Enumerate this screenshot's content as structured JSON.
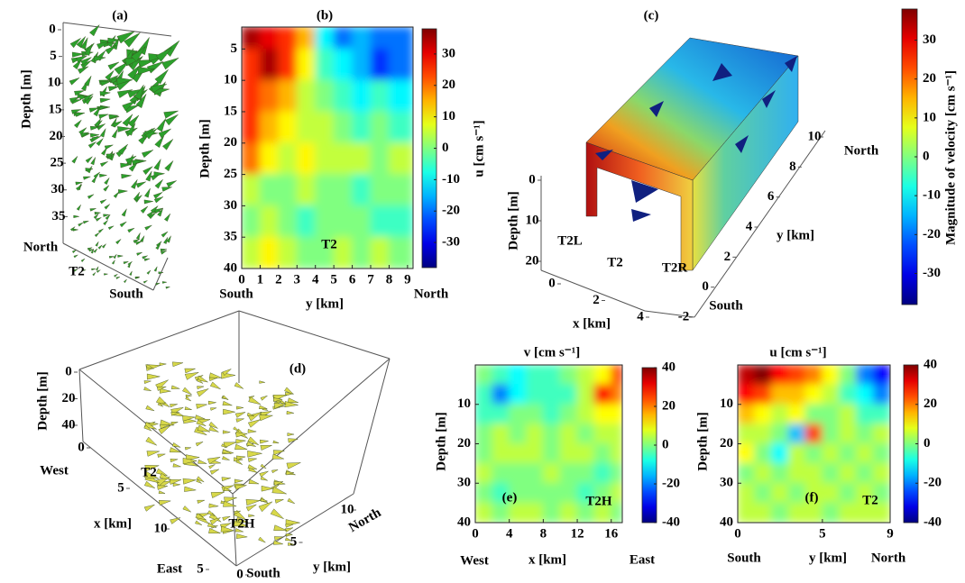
{
  "chart_data": [
    {
      "type": "quiver3d",
      "label": "(a)",
      "color": "#2ca02c",
      "zlabel": "Depth [m]",
      "zlim": [
        0,
        40
      ],
      "zticks": [
        0,
        5,
        10,
        15,
        20,
        25,
        30,
        35
      ],
      "annotations": [
        {
          "text": "North",
          "color": "#1a9a50"
        },
        {
          "text": "T2",
          "color": "#6ab84a"
        },
        {
          "text": "South",
          "color": "#e41a1c"
        }
      ]
    },
    {
      "type": "heatmap",
      "label": "(b)",
      "xlabel": "y [km]",
      "ylabel": "Depth [m]",
      "clabel": "u [cm s⁻¹]",
      "xlim": [
        0,
        9.3
      ],
      "ylim": [
        1.5,
        40
      ],
      "xticks": [
        0,
        1,
        2,
        3,
        4,
        5,
        6,
        7,
        8,
        9
      ],
      "yticks": [
        5,
        10,
        15,
        20,
        25,
        30,
        35,
        40
      ],
      "clim": [
        -38,
        38
      ],
      "cticks": [
        -30,
        -20,
        -10,
        0,
        10,
        20,
        30
      ],
      "x_edges": [
        0,
        1,
        2,
        3,
        4,
        5,
        6,
        7,
        8,
        9.3
      ],
      "y_edges": [
        1.5,
        5,
        10,
        15,
        20,
        25,
        30,
        35,
        40
      ],
      "z": [
        [
          35,
          30,
          25,
          15,
          -10,
          -20,
          -15,
          -20,
          -20
        ],
        [
          25,
          35,
          25,
          10,
          -5,
          -10,
          -15,
          -25,
          -20
        ],
        [
          25,
          20,
          15,
          5,
          0,
          -5,
          -10,
          -5,
          -10
        ],
        [
          25,
          15,
          10,
          5,
          5,
          0,
          -5,
          0,
          -5
        ],
        [
          20,
          10,
          5,
          10,
          5,
          5,
          5,
          0,
          5
        ],
        [
          5,
          0,
          0,
          5,
          0,
          0,
          -5,
          0,
          0
        ],
        [
          0,
          5,
          0,
          -5,
          0,
          0,
          0,
          -5,
          -5
        ],
        [
          5,
          10,
          5,
          0,
          0,
          5,
          0,
          5,
          0
        ]
      ],
      "annotations": [
        {
          "text": "T2",
          "color": "#7a9a50"
        },
        {
          "text": "South",
          "color": "#e41a1c"
        },
        {
          "text": "North",
          "color": "#1a9a50"
        }
      ]
    },
    {
      "type": "surface3d",
      "label": "(c)",
      "clabel": "Magnitude of velocity [cm s⁻¹]",
      "clim": [
        -38,
        38
      ],
      "cticks": [
        -30,
        -20,
        -10,
        0,
        10,
        20,
        30
      ],
      "zlabel": "Depth [m]",
      "zlim": [
        0,
        20
      ],
      "zticks": [
        0,
        10,
        20
      ],
      "xlabel": "x [km]",
      "xlim": [
        0,
        4
      ],
      "xticks": [
        0,
        2,
        4
      ],
      "ylabel": "y [km]",
      "ylim": [
        -2,
        10
      ],
      "yticks": [
        -2,
        0,
        2,
        4,
        6,
        8,
        10
      ],
      "annotations": [
        {
          "text": "T2L",
          "color": "#f5b800"
        },
        {
          "text": "T2",
          "color": "#6ab84a"
        },
        {
          "text": "T2R",
          "color": "#f5b800"
        },
        {
          "text": "North",
          "color": "#1a9a50"
        },
        {
          "text": "South",
          "color": "#e41a1c"
        }
      ]
    },
    {
      "type": "quiver3d",
      "label": "(d)",
      "color": "#d8d84a",
      "zlabel": "Depth [m]",
      "zlim": [
        0,
        40
      ],
      "zticks": [
        0,
        20,
        40
      ],
      "xlabel": "x [km]",
      "xlim": [
        0,
        15
      ],
      "xticks": [
        0,
        5,
        10,
        {
          "value": 15,
          "label": "5"
        }
      ],
      "ylabel": "y [km]",
      "ylim": [
        0,
        10
      ],
      "yticks": [
        0,
        5,
        10
      ],
      "annotations": [
        {
          "text": "West",
          "color": "#4472c4"
        },
        {
          "text": "T2",
          "color": "#6ab84a"
        },
        {
          "text": "T2H",
          "color": "#1aa7e0"
        },
        {
          "text": "East",
          "color": "#ed7d31"
        },
        {
          "text": "South",
          "color": "#e41a1c"
        },
        {
          "text": "North",
          "color": "#1a9a50"
        }
      ]
    },
    {
      "type": "heatmap",
      "label": "(e)",
      "title": "v [cm s⁻¹]",
      "xlabel": "x [km]",
      "ylabel": "Depth [m]",
      "xlim": [
        0,
        17.3
      ],
      "ylim": [
        0,
        40
      ],
      "xticks": [
        0,
        4,
        8,
        12,
        16
      ],
      "yticks": [
        10,
        20,
        30,
        40
      ],
      "clim": [
        -40,
        40
      ],
      "cticks": [
        -40,
        -20,
        0,
        20,
        40
      ],
      "x_edges": [
        0,
        2,
        4,
        6,
        8,
        10,
        12,
        14,
        16,
        17.3
      ],
      "y_edges": [
        0,
        5,
        10,
        15,
        20,
        25,
        30,
        35,
        40
      ],
      "z": [
        [
          0,
          -5,
          -10,
          -5,
          -5,
          0,
          5,
          10,
          25
        ],
        [
          -5,
          -20,
          -10,
          -5,
          -5,
          -5,
          5,
          30,
          20
        ],
        [
          -5,
          -5,
          0,
          0,
          -5,
          0,
          5,
          10,
          10
        ],
        [
          0,
          5,
          0,
          5,
          0,
          5,
          0,
          5,
          5
        ],
        [
          0,
          5,
          5,
          5,
          0,
          5,
          5,
          0,
          5
        ],
        [
          5,
          0,
          0,
          0,
          5,
          0,
          0,
          -5,
          0
        ],
        [
          0,
          -5,
          0,
          0,
          0,
          0,
          -5,
          0,
          5
        ],
        [
          5,
          0,
          5,
          5,
          0,
          5,
          0,
          5,
          0
        ]
      ],
      "annotations": [
        {
          "text": "T2H",
          "color": "#1aa7e0"
        },
        {
          "text": "West",
          "color": "#4472c4"
        },
        {
          "text": "East",
          "color": "#ed7d31"
        }
      ]
    },
    {
      "type": "heatmap",
      "label": "(f)",
      "title": "u [cm s⁻¹]",
      "xlabel": "y [km]",
      "ylabel": "Depth [m]",
      "xlim": [
        0,
        9
      ],
      "ylim": [
        0,
        40
      ],
      "xticks": [
        0,
        5,
        9
      ],
      "yticks": [
        10,
        20,
        30,
        40
      ],
      "clim": [
        -40,
        40
      ],
      "cticks": [
        -40,
        -20,
        0,
        20,
        40
      ],
      "x_edges": [
        0,
        1,
        2,
        3,
        4,
        5,
        6,
        7,
        8,
        9
      ],
      "y_edges": [
        0,
        5,
        10,
        15,
        20,
        25,
        30,
        35,
        40
      ],
      "z": [
        [
          35,
          40,
          30,
          25,
          20,
          10,
          0,
          -20,
          -30
        ],
        [
          30,
          25,
          15,
          15,
          10,
          5,
          -5,
          -10,
          -20
        ],
        [
          15,
          10,
          5,
          10,
          0,
          0,
          5,
          -5,
          -5
        ],
        [
          5,
          5,
          0,
          -15,
          25,
          0,
          5,
          0,
          5
        ],
        [
          10,
          0,
          -10,
          5,
          0,
          5,
          0,
          5,
          0
        ],
        [
          0,
          5,
          0,
          5,
          5,
          0,
          5,
          0,
          5
        ],
        [
          5,
          0,
          5,
          0,
          5,
          5,
          0,
          5,
          0
        ],
        [
          5,
          5,
          0,
          5,
          5,
          0,
          5,
          5,
          5
        ]
      ],
      "annotations": [
        {
          "text": "T2",
          "color": "#7a9a50"
        },
        {
          "text": "South",
          "color": "#e41a1c"
        },
        {
          "text": "North",
          "color": "#1a9a50"
        }
      ]
    }
  ]
}
